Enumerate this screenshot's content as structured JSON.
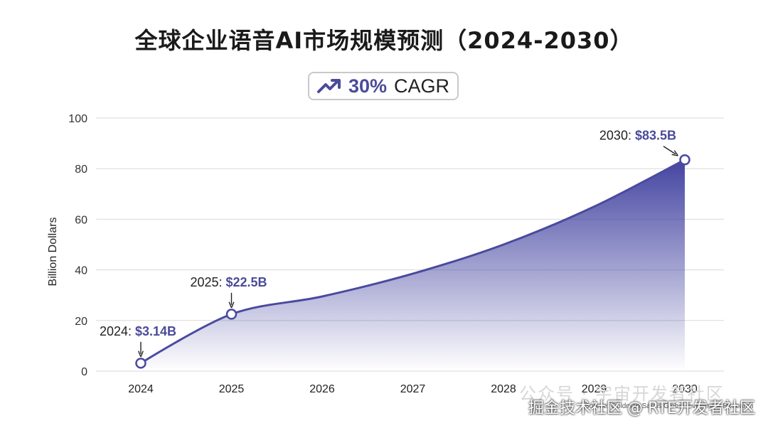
{
  "title": "全球企业语音AI市场规模预测（2024-2030）",
  "badge": {
    "icon": "trend-up-icon",
    "value": "30%",
    "label": "CAGR"
  },
  "chart_data": {
    "type": "area",
    "title": "全球企业语音AI市场规模预测（2024-2030）",
    "xlabel": "",
    "ylabel": "Billion Dollars",
    "categories": [
      "2024",
      "2025",
      "2026",
      "2027",
      "2028",
      "2029",
      "2030"
    ],
    "series": [
      {
        "values": [
          3.14,
          22.5,
          29.5,
          38.5,
          50,
          65,
          83.5
        ]
      }
    ],
    "ylim": [
      0,
      100
    ],
    "yticks": [
      0,
      20,
      40,
      60,
      80,
      100
    ],
    "grid": true,
    "colors": {
      "line": "#4a4a9e",
      "fill_top": "#4040a0",
      "label_value": "#4b4b9a"
    },
    "annotations": [
      {
        "x": "2024",
        "prefix": "2024: ",
        "value_text": "$3.14B"
      },
      {
        "x": "2025",
        "prefix": "2025: ",
        "value_text": "$22.5B"
      },
      {
        "x": "2030",
        "prefix": "2030: ",
        "value_text": "$83.5B"
      }
    ]
  },
  "source": "Source: Goldman Sachs Global Investment Research",
  "watermark_overlay": "公众号 · 宇宙开发者社区",
  "watermark": "掘金技术社区 @ RTE开发者社区"
}
